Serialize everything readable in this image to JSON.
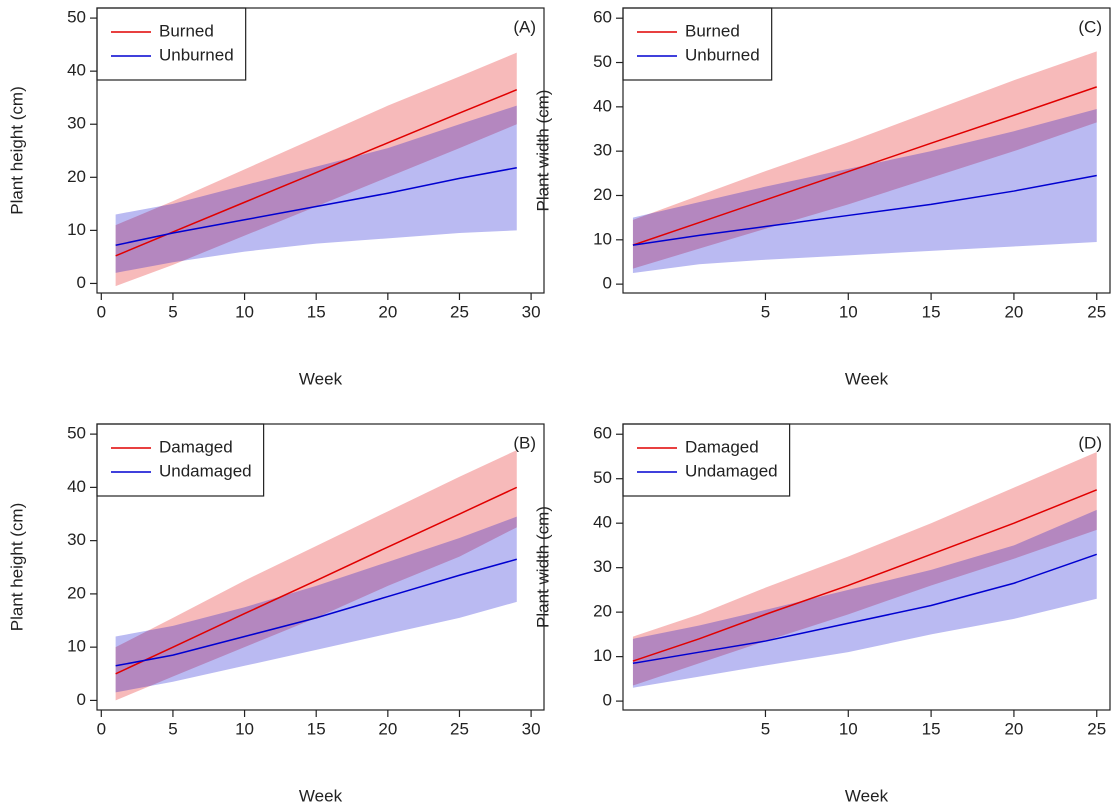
{
  "chart_data": [
    {
      "type": "line",
      "annotation": "(A)",
      "xlabel": "Week",
      "ylabel": "Plant height (cm)",
      "x": [
        1,
        5,
        10,
        15,
        20,
        25,
        29
      ],
      "xlim": [
        -0.3,
        30.9
      ],
      "xticks": [
        0,
        5,
        10,
        15,
        20,
        25,
        30
      ],
      "ylim": [
        -1.8,
        51.9
      ],
      "yticks": [
        0,
        10,
        20,
        30,
        40,
        50
      ],
      "grid": false,
      "legend": "top-left",
      "series": [
        {
          "name": "Burned",
          "color": "#e00000",
          "values": [
            5.2,
            9.7,
            15.3,
            20.9,
            26.5,
            32.1,
            36.5
          ],
          "lower": [
            -0.5,
            3.5,
            9,
            14.5,
            20,
            25.5,
            30
          ],
          "upper": [
            11,
            15.5,
            21.5,
            27.5,
            33.5,
            39,
            43.5
          ]
        },
        {
          "name": "Unburned",
          "color": "#0000d0",
          "values": [
            7.2,
            9.5,
            12,
            14.5,
            17,
            19.8,
            21.8
          ],
          "lower": [
            2,
            4,
            6,
            7.5,
            8.5,
            9.5,
            10
          ],
          "upper": [
            13,
            15,
            18.5,
            22,
            25.5,
            30,
            33.5
          ]
        }
      ]
    },
    {
      "type": "line",
      "annotation": "(C)",
      "xlabel": "Week",
      "ylabel": "Plant width (cm)",
      "x": [
        -3,
        1,
        5,
        10,
        15,
        20,
        25
      ],
      "xlim": [
        -3.6,
        25.8
      ],
      "xticks": [
        5,
        10,
        15,
        20,
        25
      ],
      "ylim": [
        -2.0,
        62.3
      ],
      "yticks": [
        0,
        10,
        20,
        30,
        40,
        50,
        60
      ],
      "grid": false,
      "legend": "top-left",
      "series": [
        {
          "name": "Burned",
          "color": "#e00000",
          "values": [
            8.8,
            13.9,
            19.0,
            25.4,
            31.8,
            38.1,
            44.5
          ],
          "lower": [
            3.5,
            8,
            12.5,
            18,
            24,
            30,
            36.5
          ],
          "upper": [
            14.5,
            20,
            25.5,
            32,
            39,
            46,
            52.5
          ]
        },
        {
          "name": "Unburned",
          "color": "#0000d0",
          "values": [
            8.8,
            11,
            13,
            15.5,
            18,
            21,
            24.5
          ],
          "lower": [
            2.5,
            4.5,
            5.5,
            6.5,
            7.5,
            8.5,
            9.5
          ],
          "upper": [
            15,
            18.5,
            22,
            26,
            30,
            34.5,
            39.5
          ]
        }
      ]
    },
    {
      "type": "line",
      "annotation": "(B)",
      "xlabel": "Week",
      "ylabel": "Plant height (cm)",
      "x": [
        1,
        5,
        10,
        15,
        20,
        25,
        29
      ],
      "xlim": [
        -0.3,
        30.9
      ],
      "xticks": [
        0,
        5,
        10,
        15,
        20,
        25,
        30
      ],
      "ylim": [
        -1.8,
        51.9
      ],
      "yticks": [
        0,
        10,
        20,
        30,
        40,
        50
      ],
      "grid": false,
      "legend": "top-left",
      "series": [
        {
          "name": "Damaged",
          "color": "#e00000",
          "values": [
            5,
            10,
            16.3,
            22.5,
            28.8,
            35,
            40
          ],
          "lower": [
            0,
            4.5,
            10,
            15.5,
            21.5,
            27,
            32.5
          ],
          "upper": [
            10,
            15.5,
            22.5,
            29,
            35.5,
            42,
            47
          ]
        },
        {
          "name": "Undamaged",
          "color": "#0000d0",
          "values": [
            6.5,
            8.5,
            12,
            15.5,
            19.5,
            23.5,
            26.5
          ],
          "lower": [
            1.5,
            3.5,
            6.5,
            9.5,
            12.5,
            15.5,
            18.5
          ],
          "upper": [
            12,
            14,
            17.5,
            21.5,
            26,
            30.5,
            34.5
          ]
        }
      ]
    },
    {
      "type": "line",
      "annotation": "(D)",
      "xlabel": "Week",
      "ylabel": "Plant width (cm)",
      "x": [
        -3,
        1,
        5,
        10,
        15,
        20,
        25
      ],
      "xlim": [
        -3.6,
        25.8
      ],
      "xticks": [
        5,
        10,
        15,
        20,
        25
      ],
      "ylim": [
        -2.0,
        62.3
      ],
      "yticks": [
        0,
        10,
        20,
        30,
        40,
        50,
        60
      ],
      "grid": false,
      "legend": "top-left",
      "series": [
        {
          "name": "Damaged",
          "color": "#e00000",
          "values": [
            9,
            14,
            19.5,
            26,
            33,
            40,
            47.5
          ],
          "lower": [
            3.5,
            8.5,
            13.5,
            19.5,
            26,
            32,
            38.5
          ],
          "upper": [
            14.5,
            19.5,
            25.5,
            32.5,
            40,
            48,
            56
          ]
        },
        {
          "name": "Undamaged",
          "color": "#0000d0",
          "values": [
            8.5,
            11,
            13.5,
            17.5,
            21.5,
            26.5,
            33
          ],
          "lower": [
            3,
            5.5,
            8,
            11,
            15,
            18.5,
            23
          ],
          "upper": [
            14,
            17,
            20.5,
            25,
            29.5,
            35,
            43
          ]
        }
      ]
    }
  ]
}
